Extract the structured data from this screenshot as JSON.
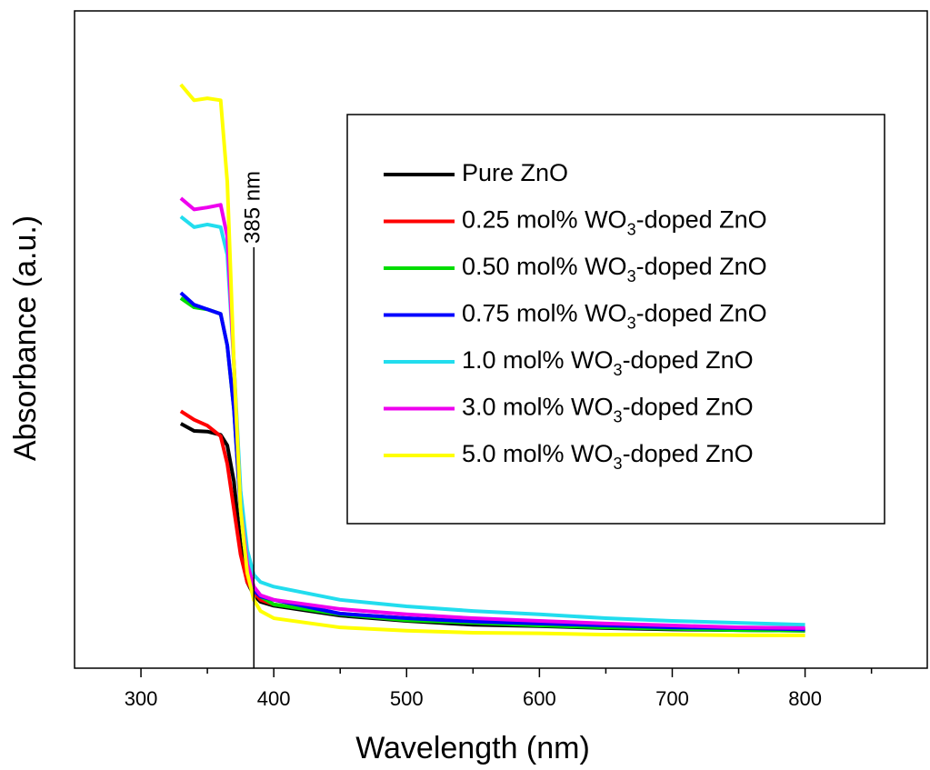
{
  "chart_data": {
    "type": "line",
    "xlabel": "Wavelength (nm)",
    "ylabel": "Absorbance (a.u.)",
    "xlim": [
      250,
      892
    ],
    "ylim": [
      0,
      1
    ],
    "xticks": [
      300,
      400,
      500,
      600,
      700,
      800
    ],
    "xminorticks": [
      350,
      450,
      550,
      650,
      750,
      850
    ],
    "annotation": {
      "text": "385 nm",
      "x": 385
    },
    "x": [
      330,
      340,
      350,
      360,
      365,
      370,
      375,
      380,
      385,
      390,
      400,
      450,
      500,
      550,
      600,
      650,
      700,
      750,
      800
    ],
    "series": [
      {
        "name": "Pure ZnO",
        "color": "#000000",
        "values": [
          0.372,
          0.361,
          0.36,
          0.355,
          0.339,
          0.284,
          0.187,
          0.131,
          0.111,
          0.101,
          0.095,
          0.08,
          0.072,
          0.066,
          0.064,
          0.061,
          0.059,
          0.058,
          0.057
        ]
      },
      {
        "name": "0.25 mol% WO3-doped ZnO",
        "color": "#ff0000",
        "values": [
          0.391,
          0.378,
          0.369,
          0.353,
          0.311,
          0.242,
          0.173,
          0.131,
          0.115,
          0.104,
          0.097,
          0.083,
          0.076,
          0.071,
          0.066,
          0.064,
          0.062,
          0.061,
          0.059
        ]
      },
      {
        "name": "0.50 mol% WO3-doped ZnO",
        "color": "#00dd00",
        "values": [
          0.563,
          0.549,
          0.546,
          0.539,
          0.491,
          0.394,
          0.242,
          0.152,
          0.118,
          0.109,
          0.097,
          0.082,
          0.073,
          0.069,
          0.065,
          0.062,
          0.06,
          0.058,
          0.057
        ]
      },
      {
        "name": "0.75 mol% WO3-doped ZnO",
        "color": "#0000ff",
        "values": [
          0.571,
          0.553,
          0.546,
          0.539,
          0.491,
          0.394,
          0.242,
          0.152,
          0.118,
          0.109,
          0.104,
          0.083,
          0.076,
          0.071,
          0.068,
          0.065,
          0.062,
          0.061,
          0.059
        ]
      },
      {
        "name": "1.0 mol% WO3-doped ZnO",
        "color": "#22ddee",
        "values": [
          0.687,
          0.671,
          0.675,
          0.671,
          0.629,
          0.463,
          0.27,
          0.18,
          0.142,
          0.131,
          0.124,
          0.104,
          0.094,
          0.087,
          0.082,
          0.076,
          0.072,
          0.069,
          0.066
        ]
      },
      {
        "name": "3.0 mol% WO3-doped ZnO",
        "color": "#ee00ee",
        "values": [
          0.715,
          0.698,
          0.701,
          0.705,
          0.657,
          0.463,
          0.242,
          0.159,
          0.124,
          0.111,
          0.104,
          0.09,
          0.082,
          0.076,
          0.072,
          0.068,
          0.065,
          0.062,
          0.061
        ]
      },
      {
        "name": "5.0 mol% WO3-doped ZnO",
        "color": "#ffff00",
        "values": [
          0.888,
          0.864,
          0.867,
          0.864,
          0.74,
          0.463,
          0.242,
          0.145,
          0.104,
          0.087,
          0.076,
          0.062,
          0.057,
          0.054,
          0.053,
          0.051,
          0.051,
          0.05,
          0.05
        ]
      }
    ]
  }
}
